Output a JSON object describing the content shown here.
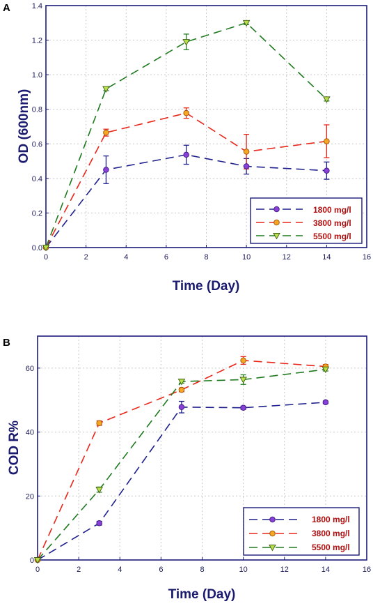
{
  "colors": {
    "axis": "#1a1a7a",
    "s1800": "#1e1e8c",
    "s3800": "#e8261a",
    "s5500": "#1f7a1f",
    "m1800": "#8a3fd6",
    "m3800": "#f5a623",
    "m5500": "#b8e04a",
    "legendText": "#b01010"
  },
  "chart_data": [
    {
      "type": "line",
      "panel": "A",
      "title": "",
      "xlabel": "Time (Day)",
      "ylabel": "OD (600nm)",
      "xlim": [
        0,
        16
      ],
      "ylim": [
        0,
        1.4
      ],
      "xticks": [
        0,
        2,
        4,
        6,
        8,
        10,
        12,
        14,
        16
      ],
      "yticks": [
        0.0,
        0.2,
        0.4,
        0.6,
        0.8,
        1.0,
        1.2,
        1.4
      ],
      "ytick_labels": [
        "0.0",
        "0.2",
        "0.4",
        "0.6",
        "0.8",
        "1.0",
        "1.2",
        "1.4"
      ],
      "grid": true,
      "legend": "bottom-right",
      "x": [
        0,
        3,
        7,
        10,
        14
      ],
      "series": [
        {
          "name": "1800 mg/l",
          "marker": "circle",
          "values": [
            0,
            0.45,
            0.537,
            0.47,
            0.445
          ],
          "errors": [
            0,
            0.08,
            0.055,
            0.045,
            0.05
          ]
        },
        {
          "name": "3800 mg/l",
          "marker": "circle",
          "values": [
            0,
            0.665,
            0.778,
            0.555,
            0.615
          ],
          "errors": [
            0,
            0.02,
            0.03,
            0.1,
            0.095
          ]
        },
        {
          "name": "5500 mg/l",
          "marker": "triangle",
          "values": [
            0,
            0.918,
            1.19,
            1.3,
            0.858
          ],
          "errors": [
            0,
            0.01,
            0.045,
            0.01,
            0.01
          ]
        }
      ]
    },
    {
      "type": "line",
      "panel": "B",
      "title": "",
      "xlabel": "Time (Day)",
      "ylabel": "COD R%",
      "xlim": [
        0,
        16
      ],
      "ylim": [
        0,
        70
      ],
      "xticks": [
        0,
        2,
        4,
        6,
        8,
        10,
        12,
        14,
        16
      ],
      "yticks": [
        0,
        20,
        40,
        60
      ],
      "ytick_labels": [
        "0",
        "20",
        "40",
        "60"
      ],
      "grid": true,
      "legend": "bottom-right",
      "x": [
        0,
        3,
        7,
        10,
        14
      ],
      "series": [
        {
          "name": "1800 mg/l",
          "marker": "circle",
          "values": [
            0,
            11.5,
            47.8,
            47.6,
            49.3
          ],
          "errors": [
            0,
            0.6,
            1.8,
            0.5,
            0.4
          ]
        },
        {
          "name": "3800 mg/l",
          "marker": "circle",
          "values": [
            0,
            42.8,
            53.2,
            62.4,
            60.5
          ],
          "errors": [
            0,
            0.7,
            0.6,
            1.2,
            0.6
          ]
        },
        {
          "name": "5500 mg/l",
          "marker": "triangle",
          "values": [
            0,
            22.0,
            55.8,
            56.4,
            59.6
          ],
          "errors": [
            0,
            0.8,
            0.5,
            1.5,
            0.5
          ]
        }
      ]
    }
  ]
}
